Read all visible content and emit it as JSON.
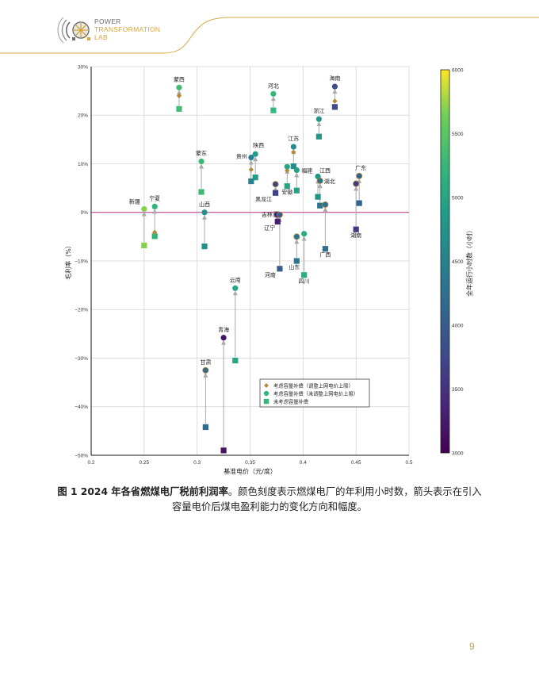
{
  "header": {
    "logo": {
      "line1": "POWER",
      "line2": "TRANSFORMATION",
      "line3": "LAB"
    },
    "accent_color": "#d8a53a"
  },
  "caption": {
    "bold": "图 1 2024 年各省燃煤电厂税前利润率",
    "rest": "。颜色刻度表示燃煤电厂的年利用小时数，箭头表示在引入容量电价后煤电盈利能力的变化方向和幅度。"
  },
  "page_number": "9",
  "chart_data": {
    "type": "scatter",
    "title": "",
    "xlabel": "基准电价（元/度）",
    "ylabel": "毛利率（%）",
    "xlim": [
      0.2,
      0.5
    ],
    "ylim": [
      -50,
      30
    ],
    "x_ticks": [
      "0.2",
      "0.25",
      "0.3",
      "0.35",
      "0.4",
      "0.45",
      "0.5"
    ],
    "y_ticks": [
      "30%",
      "20%",
      "10%",
      "0%",
      "−10%",
      "−20%",
      "−30%",
      "−40%",
      "−50%"
    ],
    "grid": true,
    "zero_line_color": "#c0308c",
    "colorbar": {
      "label": "全年运行小时数（小时）",
      "min": 3000,
      "max": 6000,
      "ticks": [
        "6000",
        "5500",
        "5000",
        "4500",
        "4000",
        "3500",
        "3000"
      ],
      "colormap": "viridis"
    },
    "legend": {
      "position": "lower right inside",
      "entries": [
        {
          "marker": "diamond",
          "label": "考虑容量补偿（调整上网电价上限）"
        },
        {
          "marker": "circle",
          "label": "考虑容量补偿（未调整上网电价上限）"
        },
        {
          "marker": "square",
          "label": "未考虑容量补偿"
        }
      ]
    },
    "series": [
      {
        "province": "蒙西",
        "x": 0.283,
        "no_comp": 21.3,
        "comp_capped": 24.0,
        "comp_uncapped": 25.7,
        "hours": 5350
      },
      {
        "province": "蒙东",
        "x": 0.304,
        "no_comp": 4.2,
        "comp_capped": null,
        "comp_uncapped": 10.5,
        "hours": 5300
      },
      {
        "province": "新疆",
        "x": 0.25,
        "no_comp": -6.8,
        "comp_capped": null,
        "comp_uncapped": 0.7,
        "hours": 5700
      },
      {
        "province": "宁夏",
        "x": 0.26,
        "no_comp": -4.9,
        "comp_capped": -4.1,
        "comp_uncapped": 1.2,
        "hours": 5200
      },
      {
        "province": "河北",
        "x": 0.372,
        "no_comp": 21.0,
        "comp_capped": null,
        "comp_uncapped": 24.4,
        "hours": 5250
      },
      {
        "province": "海南",
        "x": 0.43,
        "no_comp": 21.7,
        "comp_capped": 22.9,
        "comp_uncapped": 25.9,
        "hours": 3800
      },
      {
        "province": "浙江",
        "x": 0.415,
        "no_comp": 15.6,
        "comp_capped": null,
        "comp_uncapped": 19.2,
        "hours": 4800
      },
      {
        "province": "陕西",
        "x": 0.355,
        "no_comp": 7.2,
        "comp_capped": null,
        "comp_uncapped": 12.0,
        "hours": 4900
      },
      {
        "province": "贵州",
        "x": 0.351,
        "no_comp": 6.4,
        "comp_capped": 8.8,
        "comp_uncapped": 11.3,
        "hours": 4500
      },
      {
        "province": "江苏",
        "x": 0.391,
        "no_comp": 9.5,
        "comp_capped": 12.4,
        "comp_uncapped": 13.5,
        "hours": 4650
      },
      {
        "province": "福建",
        "x": 0.394,
        "no_comp": 4.5,
        "comp_capped": null,
        "comp_uncapped": 8.7,
        "hours": 4950
      },
      {
        "province": "安徽",
        "x": 0.385,
        "no_comp": 5.4,
        "comp_capped": 8.6,
        "comp_uncapped": 9.4,
        "hours": 5000
      },
      {
        "province": "黑龙江",
        "x": 0.374,
        "no_comp": 4.0,
        "comp_capped": null,
        "comp_uncapped": 5.8,
        "hours": 3700
      },
      {
        "province": "江西",
        "x": 0.414,
        "no_comp": 3.2,
        "comp_capped": null,
        "comp_uncapped": 7.4,
        "hours": 4750
      },
      {
        "province": "湖北",
        "x": 0.416,
        "no_comp": 1.4,
        "comp_capped": null,
        "comp_uncapped": 6.5,
        "hours": 4300
      },
      {
        "province": "广东",
        "x": 0.453,
        "no_comp": 1.9,
        "comp_capped": null,
        "comp_uncapped": 7.5,
        "hours": 4100
      },
      {
        "province": "湖南",
        "x": 0.45,
        "no_comp": -3.5,
        "comp_capped": null,
        "comp_uncapped": 5.9,
        "hours": 3600
      },
      {
        "province": "山西",
        "x": 0.307,
        "no_comp": -7.0,
        "comp_capped": null,
        "comp_uncapped": 0.0,
        "hours": 4700
      },
      {
        "province": "吉林",
        "x": 0.375,
        "no_comp": -0.4,
        "comp_capped": null,
        "comp_uncapped": -0.4,
        "hours": 3650
      },
      {
        "province": "辽宁",
        "x": 0.376,
        "no_comp": -1.9,
        "comp_capped": null,
        "comp_uncapped": -0.5,
        "hours": 3300
      },
      {
        "province": "广西",
        "x": 0.421,
        "no_comp": -7.5,
        "comp_capped": null,
        "comp_uncapped": 1.6,
        "hours": 4250
      },
      {
        "province": "河南",
        "x": 0.378,
        "no_comp": -11.6,
        "comp_capped": null,
        "comp_uncapped": -0.5,
        "hours": 4000
      },
      {
        "province": "山东",
        "x": 0.394,
        "no_comp": -10.0,
        "comp_capped": null,
        "comp_uncapped": -5.0,
        "hours": 4300
      },
      {
        "province": "四川",
        "x": 0.401,
        "no_comp": -12.9,
        "comp_capped": null,
        "comp_uncapped": -4.4,
        "hours": 5100
      },
      {
        "province": "云南",
        "x": 0.336,
        "no_comp": -30.5,
        "comp_capped": null,
        "comp_uncapped": -15.6,
        "hours": 5000
      },
      {
        "province": "青海",
        "x": 0.325,
        "no_comp": -49.0,
        "comp_capped": null,
        "comp_uncapped": -25.8,
        "hours": 3200
      },
      {
        "province": "甘肃",
        "x": 0.308,
        "no_comp": -44.2,
        "comp_capped": null,
        "comp_uncapped": -32.5,
        "hours": 4200
      }
    ]
  }
}
